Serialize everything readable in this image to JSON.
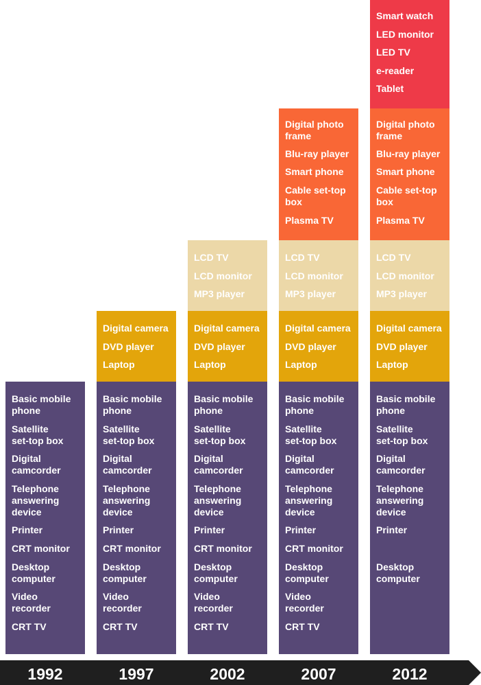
{
  "colors": {
    "legacy": "#574876",
    "gold": "#e3a50b",
    "beige": "#ecd8a8",
    "orange": "#f96736",
    "red": "#ee3a48",
    "timeline": "#1f1f1f"
  },
  "years": [
    "1992",
    "1997",
    "2002",
    "2007",
    "2012"
  ],
  "columns": [
    {
      "year": "1992",
      "groups": {
        "legacy": [
          "Basic mobile\nphone",
          "Satellite\nset-top box",
          "Digital\ncamcorder",
          "Telephone\nanswering\ndevice",
          "Printer",
          "CRT monitor",
          "Desktop\ncomputer",
          "Video\nrecorder",
          "CRT TV"
        ]
      }
    },
    {
      "year": "1997",
      "groups": {
        "gold": [
          "Digital camera",
          "DVD player",
          "Laptop"
        ],
        "legacy": [
          "Basic mobile\nphone",
          "Satellite\nset-top box",
          "Digital\ncamcorder",
          "Telephone\nanswering\ndevice",
          "Printer",
          "CRT monitor",
          "Desktop\ncomputer",
          "Video\nrecorder",
          "CRT TV"
        ]
      }
    },
    {
      "year": "2002",
      "groups": {
        "beige": [
          "LCD TV",
          "LCD monitor",
          "MP3 player"
        ],
        "gold": [
          "Digital camera",
          "DVD player",
          "Laptop"
        ],
        "legacy": [
          "Basic mobile\nphone",
          "Satellite\nset-top box",
          "Digital\ncamcorder",
          "Telephone\nanswering\ndevice",
          "Printer",
          "CRT monitor",
          "Desktop\ncomputer",
          "Video\nrecorder",
          "CRT TV"
        ]
      }
    },
    {
      "year": "2007",
      "groups": {
        "orange": [
          "Digital photo\nframe",
          "Blu-ray player",
          "Smart phone",
          "Cable set-top\nbox",
          "Plasma TV"
        ],
        "beige": [
          "LCD TV",
          "LCD monitor",
          "MP3 player"
        ],
        "gold": [
          "Digital camera",
          "DVD player",
          "Laptop"
        ],
        "legacy": [
          "Basic mobile\nphone",
          "Satellite\nset-top box",
          "Digital\ncamcorder",
          "Telephone\nanswering\ndevice",
          "Printer",
          "CRT monitor",
          "Desktop\ncomputer",
          "Video\nrecorder",
          "CRT TV"
        ]
      }
    },
    {
      "year": "2012",
      "groups": {
        "red": [
          "Smart watch",
          "LED monitor",
          "LED TV",
          "e-reader",
          "Tablet"
        ],
        "orange": [
          "Digital photo\nframe",
          "Blu-ray player",
          "Smart phone",
          "Cable set-top\nbox",
          "Plasma TV"
        ],
        "beige": [
          "LCD TV",
          "LCD monitor",
          "MP3 player"
        ],
        "gold": [
          "Digital camera",
          "DVD player",
          "Laptop"
        ],
        "legacy": [
          "Basic mobile\nphone",
          "Satellite\nset-top box",
          "Digital\ncamcorder",
          "Telephone\nanswering\ndevice",
          "Printer",
          "",
          "Desktop\ncomputer",
          "",
          ""
        ]
      }
    }
  ]
}
